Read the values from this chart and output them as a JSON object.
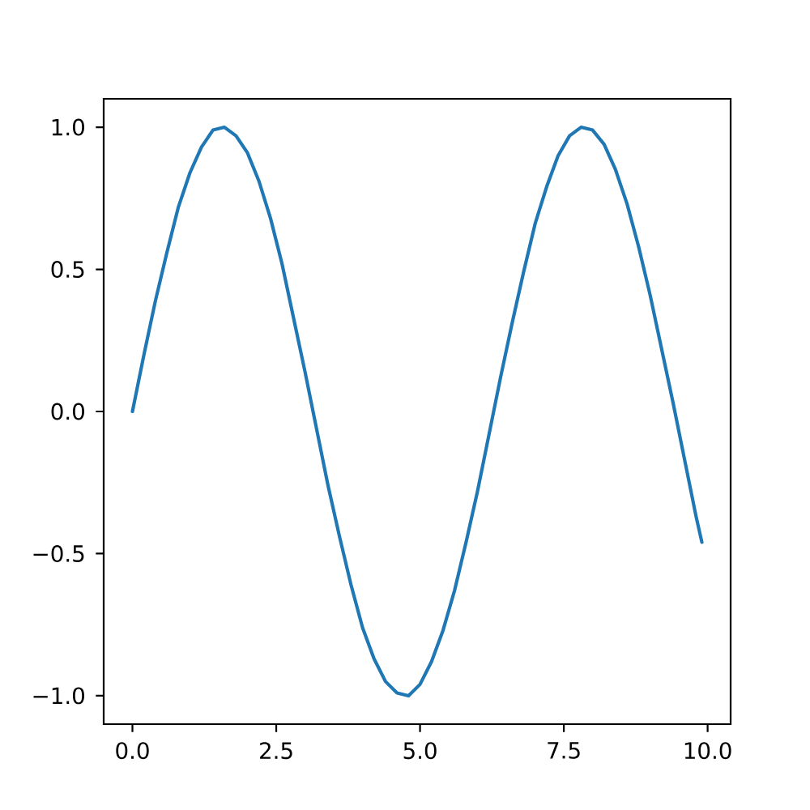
{
  "chart_data": {
    "type": "line",
    "x": [
      0,
      0.2,
      0.4,
      0.6,
      0.8,
      1.0,
      1.2,
      1.4,
      1.6,
      1.8,
      2.0,
      2.2,
      2.4,
      2.6,
      2.8,
      3.0,
      3.2,
      3.4,
      3.6,
      3.8,
      4.0,
      4.2,
      4.4,
      4.6,
      4.8,
      5.0,
      5.2,
      5.4,
      5.6,
      5.8,
      6.0,
      6.2,
      6.4,
      6.6,
      6.8,
      7.0,
      7.2,
      7.4,
      7.6,
      7.8,
      8.0,
      8.2,
      8.4,
      8.6,
      8.8,
      9.0,
      9.2,
      9.4,
      9.6,
      9.8,
      9.9
    ],
    "series": [
      {
        "color": "#1f77b4",
        "values": [
          0.0,
          0.2,
          0.39,
          0.56,
          0.72,
          0.84,
          0.93,
          0.99,
          1.0,
          0.97,
          0.91,
          0.81,
          0.68,
          0.52,
          0.33,
          0.14,
          -0.06,
          -0.26,
          -0.44,
          -0.61,
          -0.76,
          -0.87,
          -0.95,
          -0.99,
          -1.0,
          -0.96,
          -0.88,
          -0.77,
          -0.63,
          -0.46,
          -0.28,
          -0.08,
          0.12,
          0.31,
          0.49,
          0.66,
          0.79,
          0.9,
          0.97,
          1.0,
          0.99,
          0.94,
          0.85,
          0.73,
          0.58,
          0.41,
          0.22,
          0.03,
          -0.17,
          -0.37,
          -0.46
        ]
      }
    ],
    "xlim": [
      -0.5,
      10.4
    ],
    "ylim": [
      -1.1,
      1.1
    ],
    "xticks": [
      {
        "value": 0,
        "label": "0.0"
      },
      2.5,
      {
        "value": 5,
        "label": "5.0"
      },
      7.5,
      {
        "value": 10,
        "label": "10.0"
      }
    ],
    "yticks": [
      {
        "value": -1,
        "label": "−1.0"
      },
      {
        "value": -0.5,
        "label": "−0.5"
      },
      {
        "value": 0,
        "label": "0.0"
      },
      0.5,
      {
        "value": 1,
        "label": "1.0"
      }
    ]
  }
}
